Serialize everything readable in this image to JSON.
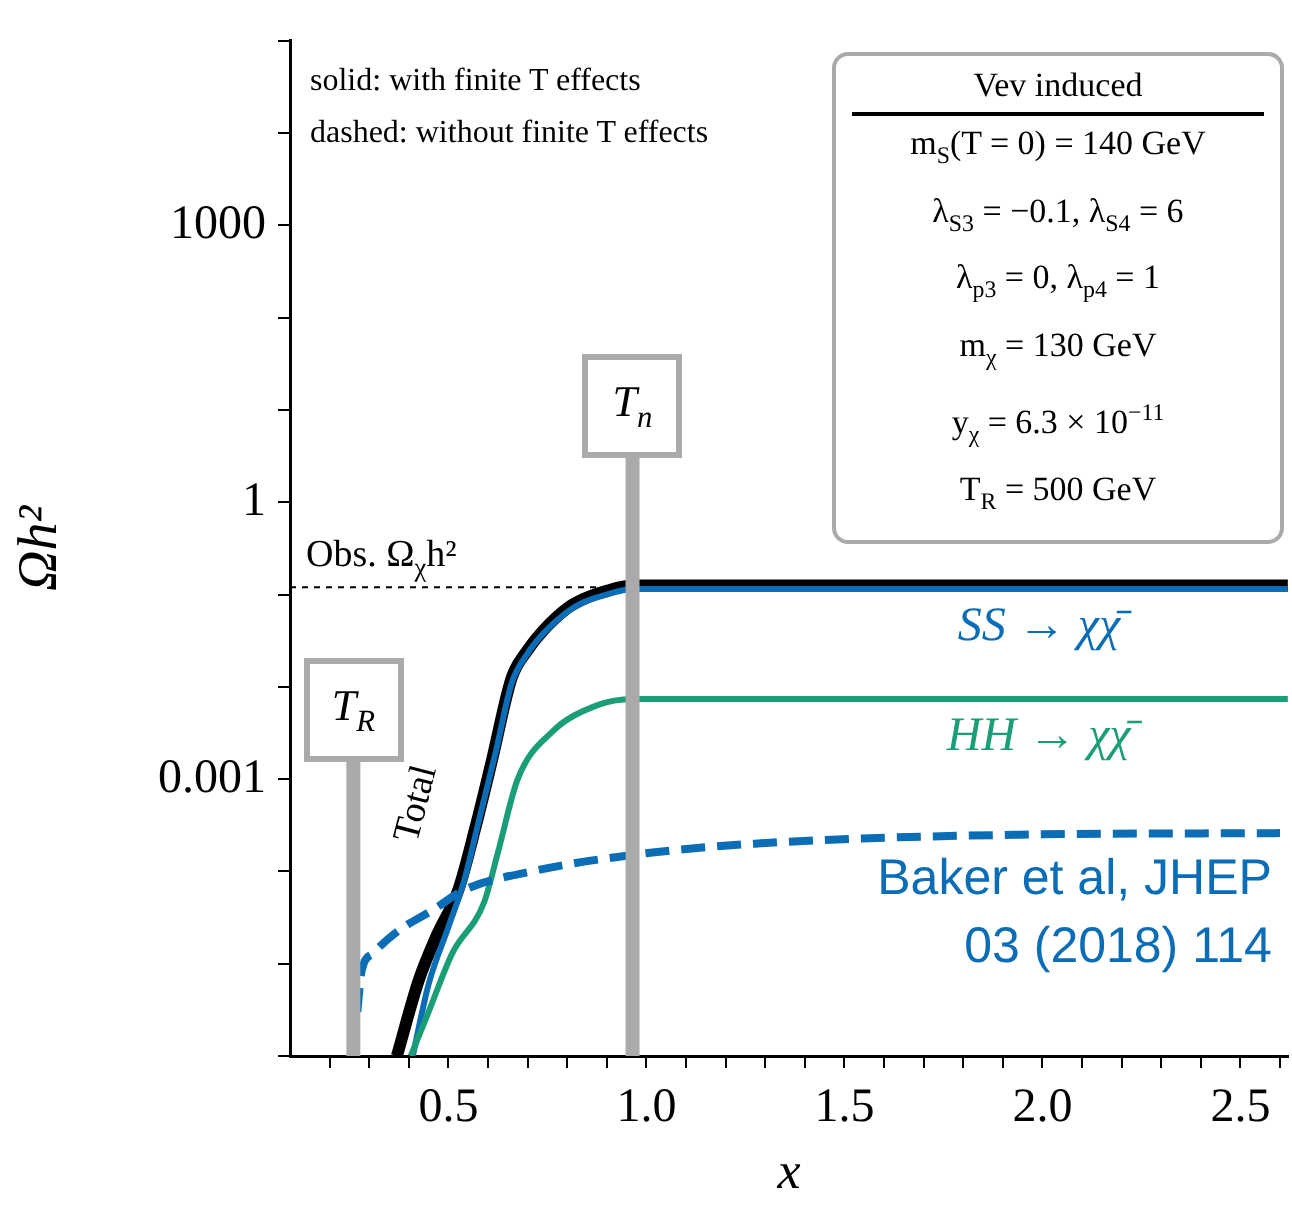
{
  "chart_data": {
    "type": "line",
    "xlabel": "x",
    "ylabel": "Ωh²",
    "log": "y",
    "grid": false,
    "legend": false,
    "marker": "none",
    "xlim": [
      0.1,
      2.62
    ],
    "xticks": [
      {
        "value": 0.2,
        "label": null
      },
      {
        "value": 0.3,
        "label": null
      },
      {
        "value": 0.4,
        "label": null
      },
      0.5,
      {
        "value": 0.6,
        "label": null
      },
      {
        "value": 0.7,
        "label": null
      },
      {
        "value": 0.8,
        "label": null
      },
      {
        "value": 0.9,
        "label": null
      },
      {
        "value": 1,
        "label": "1.0"
      },
      {
        "value": 1.1,
        "label": null
      },
      {
        "value": 1.2,
        "label": null
      },
      {
        "value": 1.3,
        "label": null
      },
      {
        "value": 1.4,
        "label": null
      },
      1.5,
      {
        "value": 1.6,
        "label": null
      },
      {
        "value": 1.7,
        "label": null
      },
      {
        "value": 1.8,
        "label": null
      },
      {
        "value": 1.9,
        "label": null
      },
      {
        "value": 2,
        "label": "2.0"
      },
      {
        "value": 2.1,
        "label": null
      },
      {
        "value": 2.2,
        "label": null
      },
      {
        "value": 2.3,
        "label": null
      },
      {
        "value": 2.4,
        "label": null
      },
      2.5,
      {
        "value": 2.6,
        "label": null
      }
    ],
    "ylim": [
      1e-06,
      100000
    ],
    "yticks": [
      {
        "value": 1e-06,
        "label": null
      },
      {
        "value": 1e-05,
        "label": null
      },
      {
        "value": 0.0001,
        "label": null
      },
      0.001,
      {
        "value": 0.01,
        "label": null
      },
      {
        "value": 0.1,
        "label": null
      },
      1,
      {
        "value": 10,
        "label": null
      },
      {
        "value": 100,
        "label": null
      },
      1000,
      {
        "value": 10000,
        "label": null
      },
      {
        "value": 100000,
        "label": null
      }
    ],
    "series": [
      {
        "name": "Total",
        "color": "#000000",
        "line_style": "solid",
        "x": [
          0.37,
          0.425,
          0.47,
          0.525,
          0.57,
          0.61,
          0.66,
          0.7,
          0.74,
          0.8,
          0.84,
          0.9,
          0.965,
          2.62
        ],
        "values": [
          1e-06,
          6.6e-06,
          2e-05,
          6.3e-05,
          0.00032,
          0.0016,
          0.0126,
          0.025,
          0.041,
          0.071,
          0.089,
          0.11,
          0.125,
          0.125
        ]
      },
      {
        "name": "SS → χχ̄",
        "color": "#0a6db5",
        "line_style": "solid",
        "x": [
          0.41,
          0.45,
          0.5,
          0.54,
          0.58,
          0.62,
          0.66,
          0.7,
          0.74,
          0.8,
          0.84,
          0.9,
          0.965,
          2.62
        ],
        "values": [
          1e-06,
          6e-06,
          2.5e-05,
          8e-05,
          0.0004,
          0.002,
          0.011,
          0.023,
          0.038,
          0.065,
          0.082,
          0.1,
          0.115,
          0.115
        ]
      },
      {
        "name": "HH → χχ̄",
        "color": "#1a9e77",
        "line_style": "solid",
        "x": [
          0.405,
          0.45,
          0.51,
          0.59,
          0.625,
          0.675,
          0.76,
          0.875,
          0.965,
          2.62
        ],
        "values": [
          1e-06,
          3e-06,
          1.3e-05,
          4.6e-05,
          0.00016,
          0.001,
          0.0032,
          0.0063,
          0.0074,
          0.0074
        ]
      },
      {
        "color": "#0a6db5",
        "line_style": "dashed",
        "x": [
          0.27,
          0.28,
          0.31,
          0.375,
          0.46,
          0.54,
          0.71,
          0.96,
          1.275,
          1.94,
          2.6
        ],
        "values": [
          3e-06,
          8e-06,
          1.3e-05,
          2.3e-05,
          3.8e-05,
          6.3e-05,
          0.0001,
          0.00015,
          0.0002,
          0.00025,
          0.00026
        ]
      }
    ],
    "ref_lines": [
      {
        "axis": "y",
        "value": 0.12,
        "label": "Obs. Ω$_{χ}$h²",
        "color": "#000000",
        "line_style": "dashed"
      },
      {
        "axis": "x",
        "value": 0.26,
        "label": "T$_{R}$",
        "color": "#aaaaaa",
        "line_style": "solid"
      },
      {
        "axis": "x",
        "value": 0.965,
        "label": "T$_{n}$",
        "color": "#aaaaaa",
        "line_style": "solid"
      }
    ],
    "annotations": [
      "solid: with finite T effects",
      "dashed: without finite T effects",
      "Vev induced",
      "m$_{S}$(T = 0) = 140 GeV",
      "λ$_{S3}$ = −0.1, λ$_{S4}$ = 6",
      "λ$_{p3}$ = 0, λ$_{p4}$ = 1",
      "m$_{χ}$ = 130 GeV",
      "y$_{χ}$ = 6.3 × 10$^{−11}$",
      "T$_{R}$ = 500 GeV",
      "Baker et al, JHEP 03 (2018) 114"
    ]
  }
}
